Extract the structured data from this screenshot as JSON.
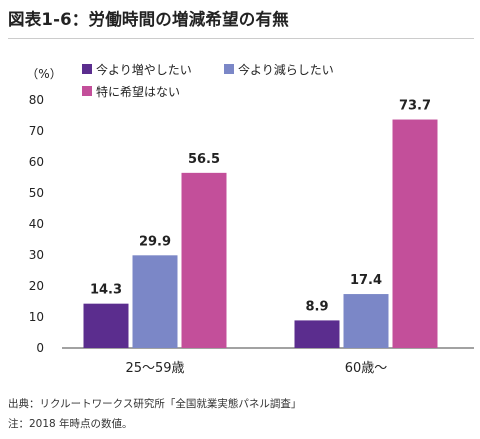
{
  "title": "図表1-6：労働時間の増減希望の有無",
  "chart_data": {
    "type": "bar",
    "categories": [
      "25〜59歳",
      "60歳〜"
    ],
    "series": [
      {
        "name": "今より増やしたい",
        "color": "#5b2d8e",
        "values": [
          14.3,
          8.9
        ]
      },
      {
        "name": "今より減らしたい",
        "color": "#7b87c7",
        "values": [
          29.9,
          17.4
        ]
      },
      {
        "name": "特に希望はない",
        "color": "#c34f9a",
        "values": [
          56.5,
          73.7
        ]
      }
    ],
    "ylabel": "（%）",
    "ylim": [
      0,
      80
    ],
    "yticks": [
      0,
      10,
      20,
      30,
      40,
      50,
      60,
      70,
      80
    ],
    "grid": false,
    "legend_position": "top"
  },
  "notes": {
    "source": "出典：リクルートワークス研究所「全国就業実態パネル調査」",
    "note": "注：2018 年時点の数値。"
  }
}
